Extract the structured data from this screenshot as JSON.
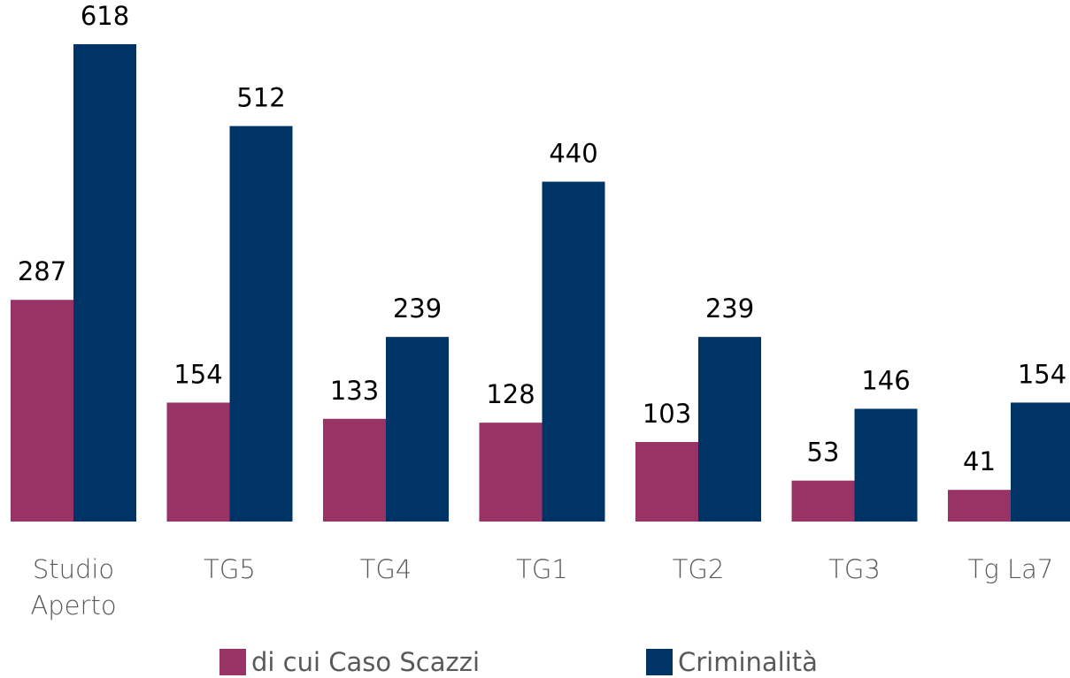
{
  "chart_data": {
    "type": "bar",
    "categories": [
      "Studio Aperto",
      "TG5",
      "TG4",
      "TG1",
      "TG2",
      "TG3",
      "Tg La7"
    ],
    "series": [
      {
        "name": "di cui Caso Scazzi",
        "color": "#993366",
        "values": [
          287,
          154,
          133,
          128,
          103,
          53,
          41
        ]
      },
      {
        "name": "Criminalità",
        "color": "#003366",
        "values": [
          618,
          512,
          239,
          440,
          239,
          146,
          154
        ]
      }
    ],
    "legend": "bottom"
  }
}
